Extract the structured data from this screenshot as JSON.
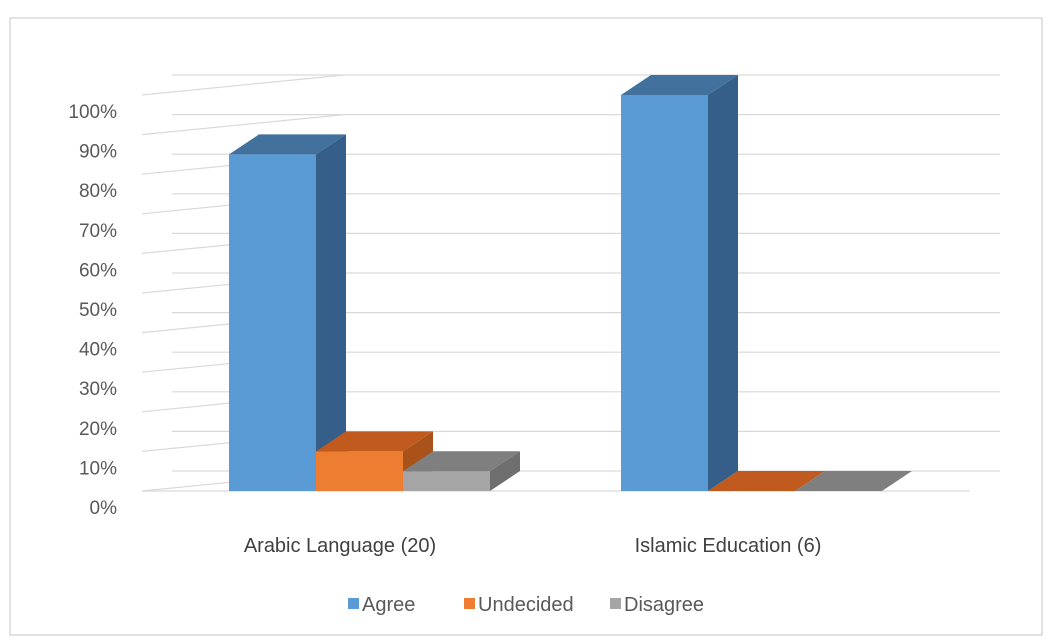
{
  "chart_data": {
    "type": "bar",
    "categories": [
      "Arabic Language (20)",
      "Islamic Education (6)"
    ],
    "series": [
      {
        "name": "Agree",
        "values": [
          85,
          100
        ],
        "color": "#5B9BD5",
        "side_color": "#355F89",
        "top_color": "#41719C"
      },
      {
        "name": "Undecided",
        "values": [
          10,
          0
        ],
        "color": "#ED7D31",
        "side_color": "#A9531A",
        "top_color": "#C05A1E"
      },
      {
        "name": "Disagree",
        "values": [
          5,
          0
        ],
        "color": "#A5A5A5",
        "side_color": "#6E6E6E",
        "top_color": "#7F7F7F"
      }
    ],
    "y_ticks": [
      "0%",
      "10%",
      "20%",
      "30%",
      "40%",
      "50%",
      "60%",
      "70%",
      "80%",
      "90%",
      "100%"
    ],
    "ylim": [
      0,
      100
    ],
    "grid": true,
    "legend_position": "bottom",
    "title": "",
    "xlabel": "",
    "ylabel": ""
  }
}
